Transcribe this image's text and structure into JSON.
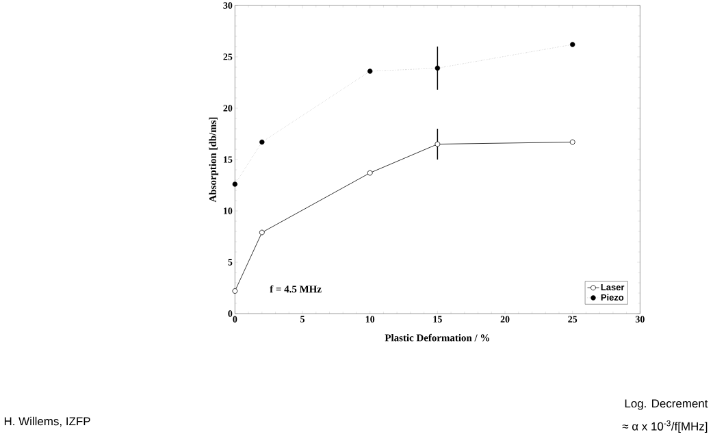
{
  "chart_data": {
    "type": "line",
    "xlabel": "Plastic Deformation / %",
    "ylabel": "Absorption [db/ms]",
    "x": [
      0,
      2,
      10,
      15,
      25
    ],
    "series": [
      {
        "name": "Laser",
        "color": "#000000",
        "values": [
          2.2,
          7.9,
          13.7,
          16.5,
          16.7
        ],
        "errors": [
          null,
          null,
          null,
          1.5,
          null
        ],
        "line_style": "solid",
        "marker": "circle"
      },
      {
        "name": "Piezo",
        "color": "#000000",
        "values": [
          12.6,
          16.7,
          23.6,
          23.9,
          26.2
        ],
        "errors": [
          null,
          null,
          null,
          2.1,
          null
        ],
        "line_style": "dotted",
        "marker": "circle"
      }
    ],
    "xlim": [
      0,
      30
    ],
    "ylim": [
      0,
      30
    ],
    "xticks": [
      0,
      5,
      10,
      15,
      20,
      25,
      30
    ],
    "yticks": [
      0,
      5,
      10,
      15,
      20,
      25,
      30
    ],
    "legend": "bottom right",
    "grid": false,
    "annotations": [
      "f = 4.5 MHz",
      "H. Willems, IZFP",
      "Log. Decrement",
      "≈ α x 10$^{-3}$/f[MHz]"
    ]
  }
}
